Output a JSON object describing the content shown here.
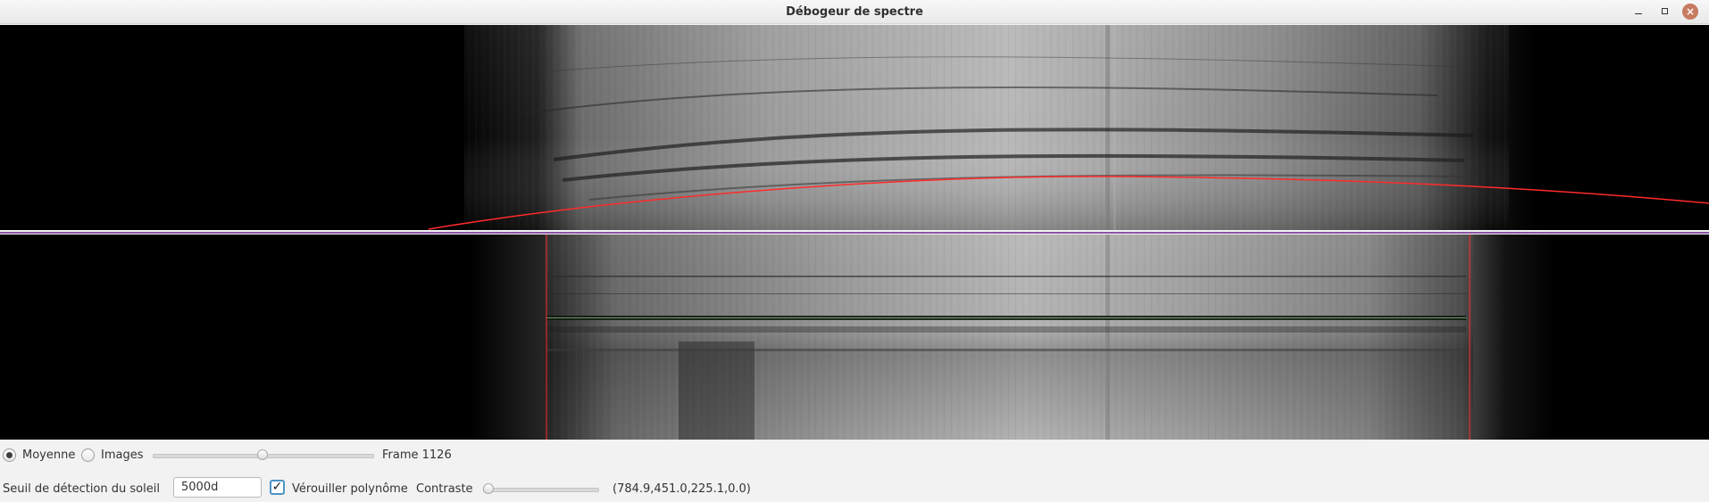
{
  "window": {
    "title": "Débogeur de spectre"
  },
  "title_buttons": {
    "close_glyph": "×"
  },
  "viewer": {
    "top_panel": "solar-spectrum-with-curved-detected-line",
    "bottom_panel": "corrected-spectrum-with-detection-boundaries",
    "overlay_color": "#ff2a2a",
    "divider_color": "#8c54a6"
  },
  "controls": {
    "mode": {
      "average_label": "Moyenne",
      "images_label": "Images",
      "selected": "Moyenne"
    },
    "frame_label": "Frame 1126",
    "frame_slider_fraction": 0.5,
    "sun_threshold_label": "Seuil de détection du soleil",
    "sun_threshold_value": "5000d",
    "lock_polynomial": {
      "label": "Vérouiller polynôme",
      "checked": true
    },
    "contrast_label": "Contraste",
    "contrast_slider_fraction": 0.0,
    "coefficients": "(784.9,451.0,225.1,0.0)"
  }
}
